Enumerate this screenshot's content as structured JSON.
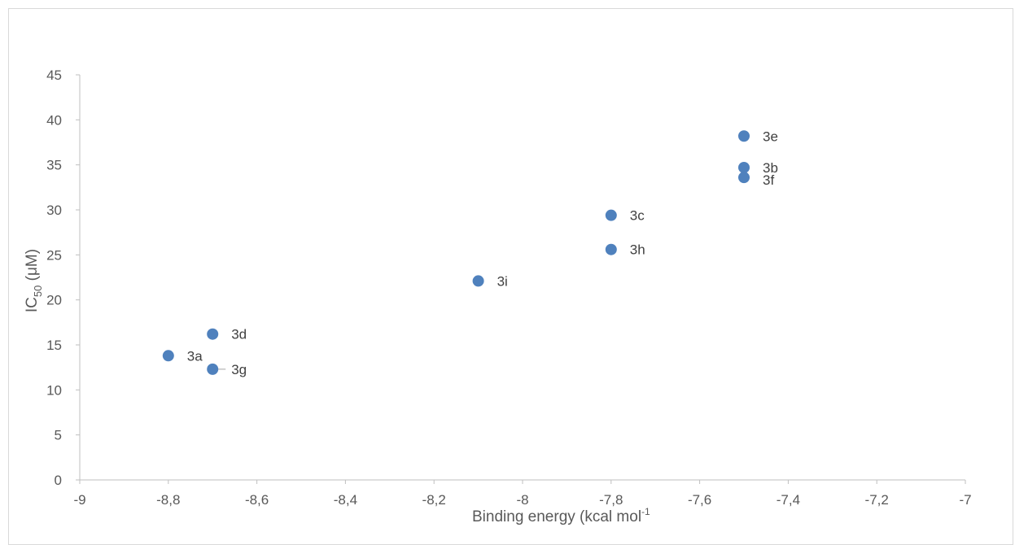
{
  "chart_data": {
    "type": "scatter",
    "title": "",
    "xlabel": "Binding energy (kcal mol",
    "xlabel_sup": "-1",
    "ylabel": "IC",
    "ylabel_sub": "50",
    "ylabel_tail": " (μM)",
    "xlim": [
      -9,
      -7
    ],
    "ylim": [
      0,
      45
    ],
    "x_tick_labels": [
      "-9",
      "-8,8",
      "-8,6",
      "-8,4",
      "-8,2",
      "-8",
      "-7,8",
      "-7,6",
      "-7,4",
      "-7,2",
      "-7"
    ],
    "x_tick_values": [
      -9,
      -8.8,
      -8.6,
      -8.4,
      -8.2,
      -8,
      -7.8,
      -7.6,
      -7.4,
      -7.2,
      -7
    ],
    "y_tick_labels": [
      "0",
      "5",
      "10",
      "15",
      "20",
      "25",
      "30",
      "35",
      "40",
      "45"
    ],
    "y_tick_values": [
      0,
      5,
      10,
      15,
      20,
      25,
      30,
      35,
      40,
      45
    ],
    "grid": false,
    "legend": "none",
    "marker_color": "#4f81bd",
    "points": [
      {
        "label": "3a",
        "x": -8.8,
        "y": 13.8
      },
      {
        "label": "3b",
        "x": -7.5,
        "y": 34.7
      },
      {
        "label": "3c",
        "x": -7.8,
        "y": 29.4
      },
      {
        "label": "3d",
        "x": -8.7,
        "y": 16.2
      },
      {
        "label": "3e",
        "x": -7.5,
        "y": 38.2
      },
      {
        "label": "3f",
        "x": -7.5,
        "y": 33.6
      },
      {
        "label": "3g",
        "x": -8.7,
        "y": 12.3
      },
      {
        "label": "3h",
        "x": -7.8,
        "y": 25.6
      },
      {
        "label": "3i",
        "x": -8.1,
        "y": 22.1
      }
    ]
  }
}
